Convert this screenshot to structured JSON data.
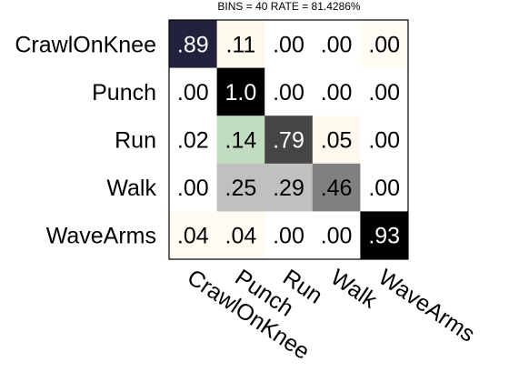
{
  "chart_data": {
    "type": "heatmap",
    "title": "BINS = 40  RATE = 81.4286%",
    "xlabel": "",
    "ylabel": "",
    "row_labels": [
      "CrawlOnKnee",
      "Punch",
      "Run",
      "Walk",
      "WaveArms"
    ],
    "col_labels": [
      "CrawlOnKnee",
      "Punch",
      "Run",
      "Walk",
      "WaveArms"
    ],
    "values": [
      [
        0.89,
        0.11,
        0.0,
        0.0,
        0.0
      ],
      [
        0.0,
        1.0,
        0.0,
        0.0,
        0.0
      ],
      [
        0.02,
        0.14,
        0.79,
        0.05,
        0.0
      ],
      [
        0.0,
        0.25,
        0.29,
        0.46,
        0.0
      ],
      [
        0.04,
        0.04,
        0.0,
        0.0,
        0.93
      ]
    ],
    "cell_labels": [
      [
        ".89",
        ".11",
        ".00",
        ".00",
        ".00"
      ],
      [
        ".00",
        "1.0",
        ".00",
        ".00",
        ".00"
      ],
      [
        ".02",
        ".14",
        ".79",
        ".05",
        ".00"
      ],
      [
        ".00",
        ".25",
        ".29",
        ".46",
        ".00"
      ],
      [
        ".04",
        ".04",
        ".00",
        ".00",
        ".93"
      ]
    ],
    "cell_colors": [
      [
        "#22223f",
        "#fff8ee",
        "#ffffff",
        "#ffffff",
        "#fffcf6"
      ],
      [
        "#ffffff",
        "#000000",
        "#ffffff",
        "#ffffff",
        "#ffffff"
      ],
      [
        "#ffffff",
        "#c1dcc1",
        "#454545",
        "#fff8ee",
        "#ffffff"
      ],
      [
        "#ffffff",
        "#c0c0c0",
        "#c0c0c0",
        "#808080",
        "#ffffff"
      ],
      [
        "#fffbf3",
        "#fffbf3",
        "#ffffff",
        "#ffffff",
        "#000000"
      ]
    ],
    "text_colors": [
      [
        "#ffffff",
        "#000000",
        "#000000",
        "#000000",
        "#000000"
      ],
      [
        "#000000",
        "#ffffff",
        "#000000",
        "#000000",
        "#000000"
      ],
      [
        "#000000",
        "#000000",
        "#ffffff",
        "#000000",
        "#000000"
      ],
      [
        "#000000",
        "#000000",
        "#000000",
        "#000000",
        "#000000"
      ],
      [
        "#000000",
        "#000000",
        "#000000",
        "#000000",
        "#ffffff"
      ]
    ]
  }
}
